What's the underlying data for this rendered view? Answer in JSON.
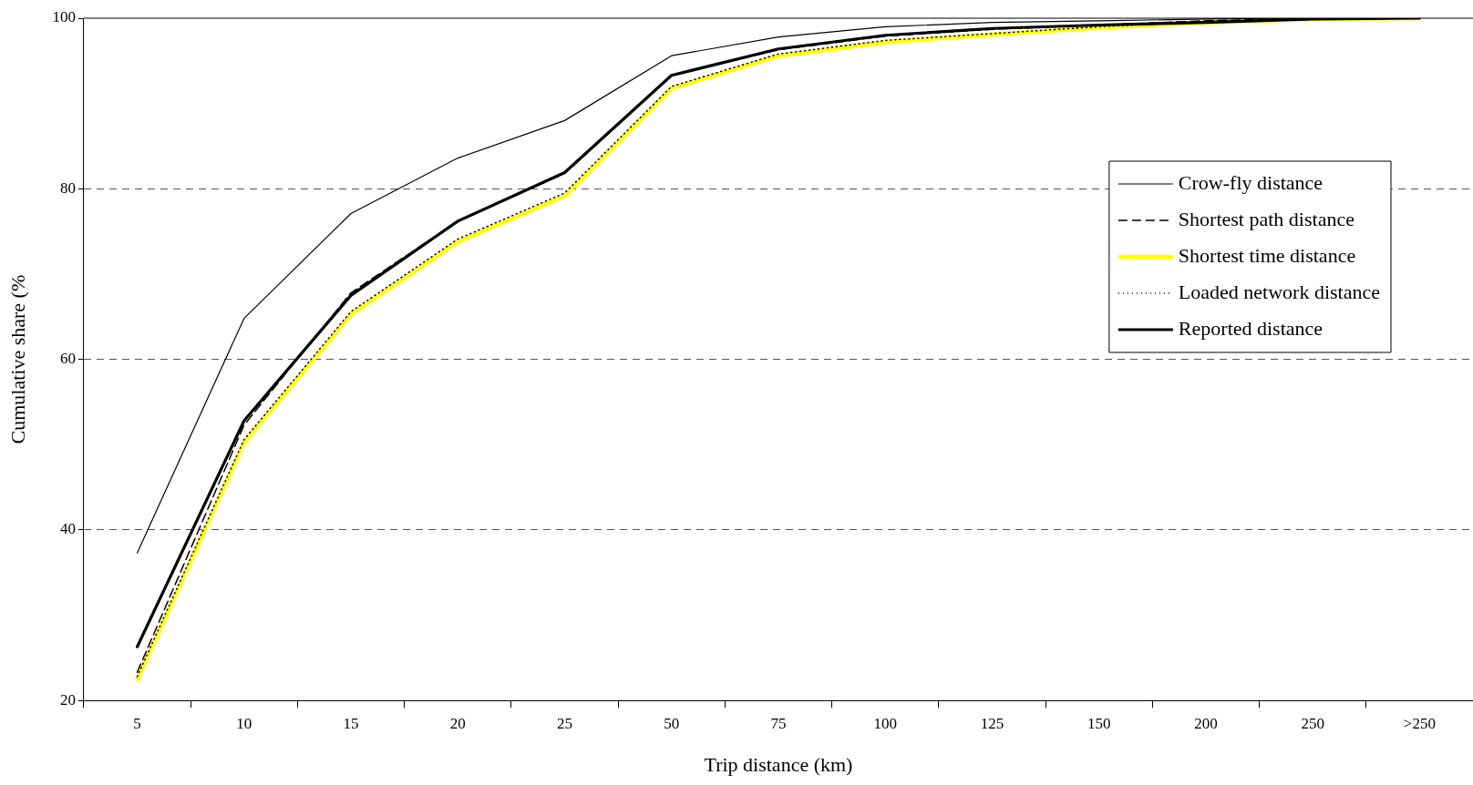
{
  "chart_data": {
    "type": "line",
    "xlabel": "Trip distance (km)",
    "ylabel": "Cumulative share (%",
    "categories": [
      "5",
      "10",
      "15",
      "20",
      "25",
      "50",
      "75",
      "100",
      "125",
      "150",
      "200",
      "250",
      ">250"
    ],
    "series": [
      {
        "name": "Crow-fly distance",
        "color": "#000000",
        "line_style": "solid",
        "values": [
          37.3,
          64.8,
          77.1,
          83.6,
          88.0,
          95.6,
          97.8,
          99.0,
          99.5,
          99.7,
          99.9,
          100,
          100
        ]
      },
      {
        "name": "Shortest path distance",
        "color": "#000000",
        "line_style": "dashed",
        "values": [
          23.3,
          52.3,
          67.8,
          76.2,
          81.8,
          93.3,
          96.3,
          97.9,
          98.7,
          99.2,
          99.7,
          100,
          100
        ]
      },
      {
        "name": "Shortest time distance",
        "color": "#ffff00",
        "line_style": "solid",
        "values": [
          22.5,
          50.3,
          65.3,
          73.8,
          79.2,
          91.8,
          95.6,
          97.2,
          98.1,
          98.9,
          99.5,
          99.9,
          100
        ]
      },
      {
        "name": "Loaded network distance",
        "color": "#000000",
        "line_style": "dotted",
        "values": [
          22.8,
          50.6,
          65.6,
          74.1,
          79.5,
          92.0,
          95.8,
          97.4,
          98.2,
          99.0,
          99.6,
          99.9,
          100
        ]
      },
      {
        "name": "Reported distance",
        "color": "#000000",
        "line_style": "solid",
        "values": [
          26.3,
          52.8,
          67.5,
          76.2,
          81.9,
          93.3,
          96.4,
          98.0,
          98.8,
          99.2,
          99.5,
          99.9,
          100
        ]
      }
    ],
    "ylim": [
      20,
      100
    ],
    "yticks": [
      20,
      40,
      60,
      80,
      100
    ],
    "grid": "y",
    "legend": "right",
    "marker": "none"
  }
}
